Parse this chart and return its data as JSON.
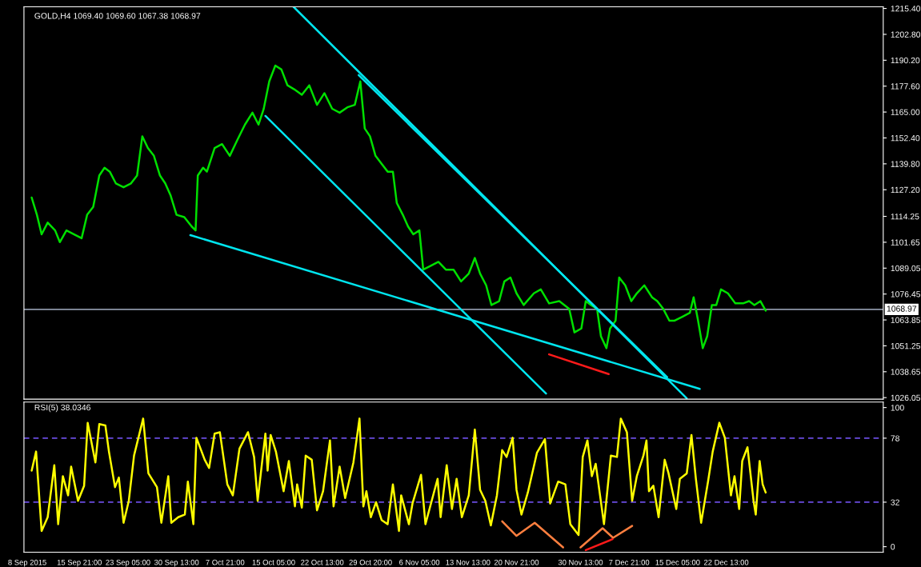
{
  "chart_data": [
    {
      "type": "line",
      "title": "GOLD,H4 1069.40 1069.60 1067.38 1068.97",
      "tick_labels": "y",
      "xlim": [
        "2015-09-07T12:00",
        "2016-01-15T06:00"
      ],
      "ylim": [
        1025.3,
        1216.2
      ],
      "yticks": [
        {
          "value": 1215.4,
          "label": "1215.40"
        },
        {
          "value": 1202.8,
          "label": "1202.80"
        },
        {
          "value": 1190.2,
          "label": "1190.20"
        },
        {
          "value": 1177.6,
          "label": "1177.60"
        },
        {
          "value": 1165.0,
          "label": "1165.00"
        },
        {
          "value": 1152.4,
          "label": "1152.40"
        },
        {
          "value": 1139.8,
          "label": "1139.80"
        },
        {
          "value": 1127.2,
          "label": "1127.20"
        },
        {
          "value": 1114.25,
          "label": "1114.25"
        },
        {
          "value": 1101.65,
          "label": "1101.65"
        },
        {
          "value": 1089.05,
          "label": "1089.05"
        },
        {
          "value": 1076.45,
          "label": "1076.45"
        },
        {
          "value": 1063.85,
          "label": "1063.85"
        },
        {
          "value": 1051.25,
          "label": "1051.25"
        },
        {
          "value": 1038.65,
          "label": "1038.65"
        },
        {
          "value": 1026.05,
          "label": "1026.05"
        }
      ],
      "ref_lines": [
        {
          "axis": "y",
          "value": 1068.97,
          "label": "1068.97",
          "color": "#8c96a8",
          "line_style": "solid"
        }
      ],
      "series": [
        {
          "color": "#00e000",
          "x": [
            "2015-09-08T16:00",
            "2015-09-09T11:00",
            "2015-09-10T04:00",
            "2015-09-11T02:00",
            "2015-09-12T05:00",
            "2015-09-12T22:00",
            "2015-09-13T22:00",
            "2015-09-15T02:00",
            "2015-09-16T05:00",
            "2015-09-17T01:00",
            "2015-09-17T23:00",
            "2015-09-18T21:00",
            "2015-09-19T16:00",
            "2015-09-20T11:00",
            "2015-09-21T09:00",
            "2015-09-22T13:00",
            "2015-09-23T16:00",
            "2015-09-24T14:00",
            "2015-09-25T09:00",
            "2015-09-26T05:00",
            "2015-09-27T03:00",
            "2015-09-28T01:00",
            "2015-09-28T20:00",
            "2015-09-29T15:00",
            "2015-09-30T13:00",
            "2015-10-01T17:00",
            "2015-10-02T20:00",
            "2015-10-03T10:00",
            "2015-10-03T18:00",
            "2015-10-04T13:00",
            "2015-10-05T03:00",
            "2015-10-06T07:00",
            "2015-10-07T10:00",
            "2015-10-08T14:00",
            "2015-10-09T17:00",
            "2015-10-10T21:00",
            "2015-10-12T00:00",
            "2015-10-12T22:00",
            "2015-10-13T17:00",
            "2015-10-14T13:00",
            "2015-10-15T11:00",
            "2015-10-16T09:00",
            "2015-10-17T07:00",
            "2015-10-18T07:00",
            "2015-10-19T11:00",
            "2015-10-20T14:00",
            "2015-10-21T18:00",
            "2015-10-22T21:00",
            "2015-10-24T01:00",
            "2015-10-25T04:00",
            "2015-10-26T08:00",
            "2015-10-27T11:00",
            "2015-10-28T07:00",
            "2015-10-28T23:00",
            "2015-10-29T18:00",
            "2015-10-30T14:00",
            "2015-10-31T12:00",
            "2015-11-01T10:00",
            "2015-11-02T05:00",
            "2015-11-02T19:00",
            "2015-11-03T17:00",
            "2015-11-04T12:00",
            "2015-11-05T07:00",
            "2015-11-06T05:00",
            "2015-11-06T19:00",
            "2015-11-07T22:00",
            "2015-11-09T02:00",
            "2015-11-10T05:00",
            "2015-11-11T09:00",
            "2015-11-12T12:00",
            "2015-11-13T16:00",
            "2015-11-14T14:00",
            "2015-11-15T09:00",
            "2015-11-16T07:00",
            "2015-11-17T02:00",
            "2015-11-18T06:00",
            "2015-11-19T01:00",
            "2015-11-19T23:00",
            "2015-11-20T21:00",
            "2015-11-21T23:00",
            "2015-11-23T12:00",
            "2015-11-24T13:00",
            "2015-11-25T19:00",
            "2015-11-27T08:00",
            "2015-11-28T20:00",
            "2015-11-29T15:00",
            "2015-11-30T16:00",
            "2015-12-01T08:00",
            "2015-12-02T03:00",
            "2015-12-03T01:00",
            "2015-12-03T15:00",
            "2015-12-04T11:00",
            "2015-12-05T00:00",
            "2015-12-05T20:00",
            "2015-12-06T09:00",
            "2015-12-07T07:00",
            "2015-12-08T05:00",
            "2015-12-09T01:00",
            "2015-12-10T04:00",
            "2015-12-11T08:00",
            "2015-12-12T03:00",
            "2015-12-13T01:00",
            "2015-12-13T23:00",
            "2015-12-14T18:00",
            "2015-12-15T22:00",
            "2015-12-17T01:00",
            "2015-12-17T15:00",
            "2015-12-18T07:00",
            "2015-12-19T00:00",
            "2015-12-19T16:00",
            "2015-12-20T09:00",
            "2015-12-21T01:00",
            "2015-12-21T18:00",
            "2015-12-22T19:00",
            "2015-12-23T22:00",
            "2015-12-25T02:00",
            "2015-12-26T00:00",
            "2015-12-26T19:00",
            "2015-12-27T17:00",
            "2015-12-28T12:00"
          ],
          "values": [
            1123.4,
            1115.0,
            1105.5,
            1111.2,
            1107.4,
            1101.7,
            1107.4,
            1105.5,
            1103.6,
            1115.0,
            1118.8,
            1134.1,
            1137.9,
            1136.0,
            1130.3,
            1128.4,
            1130.3,
            1134.1,
            1153.2,
            1147.5,
            1143.7,
            1134.1,
            1130.3,
            1124.6,
            1115.0,
            1113.9,
            1109.3,
            1107.4,
            1134.1,
            1137.9,
            1136.0,
            1147.5,
            1149.4,
            1143.7,
            1151.3,
            1158.9,
            1164.7,
            1158.9,
            1166.6,
            1179.9,
            1187.6,
            1185.7,
            1178.0,
            1176.1,
            1173.4,
            1178.0,
            1168.5,
            1174.2,
            1166.6,
            1164.7,
            1167.3,
            1168.5,
            1179.9,
            1157.0,
            1153.2,
            1143.7,
            1139.8,
            1136.0,
            1136.0,
            1120.8,
            1115.0,
            1109.3,
            1105.5,
            1107.4,
            1088.3,
            1090.2,
            1092.1,
            1088.3,
            1088.3,
            1082.6,
            1086.4,
            1094.0,
            1086.4,
            1080.7,
            1071.1,
            1073.0,
            1082.6,
            1084.5,
            1076.8,
            1071.1,
            1076.8,
            1078.7,
            1071.9,
            1073.0,
            1069.2,
            1057.8,
            1059.7,
            1073.0,
            1071.1,
            1069.2,
            1055.9,
            1050.1,
            1059.7,
            1063.5,
            1084.5,
            1080.7,
            1073.0,
            1076.8,
            1080.7,
            1074.9,
            1073.0,
            1069.2,
            1063.5,
            1063.5,
            1065.4,
            1067.3,
            1074.9,
            1063.5,
            1050.1,
            1055.9,
            1071.1,
            1071.1,
            1078.7,
            1076.8,
            1071.9,
            1071.9,
            1073.0,
            1071.1,
            1073.0,
            1068.4
          ]
        },
        {
          "color": "#00e5ee",
          "x": [
            "2015-10-02T15:00",
            "2015-12-18T13:00"
          ],
          "values": [
            1105.1,
            1030.3
          ]
        },
        {
          "color": "#00e5ee",
          "x": [
            "2015-10-28T01:00",
            "2015-12-13T15:00"
          ],
          "values": [
            1183.0,
            1036.0
          ]
        },
        {
          "color": "#00e5ee",
          "x": [
            "2015-10-18T05:00",
            "2015-12-16T14:00"
          ],
          "values": [
            1216.2,
            1025.7
          ]
        },
        {
          "color": "#00e5ee",
          "x": [
            "2015-10-13T23:00",
            "2015-11-25T08:00"
          ],
          "values": [
            1163.1,
            1028.0
          ]
        },
        {
          "color": "#ff1a1a",
          "x": [
            "2015-11-25T19:00",
            "2015-12-04T19:00"
          ],
          "values": [
            1047.1,
            1037.5
          ]
        }
      ]
    },
    {
      "type": "line",
      "title": "RSI(5) 38.0346",
      "xlim": [
        "2015-09-07T12:00",
        "2016-01-15T06:00"
      ],
      "ylim": [
        -4,
        104
      ],
      "yticks": [
        0,
        32,
        78,
        100
      ],
      "xticks": [
        {
          "value": "2015-09-08",
          "label": "8 Sep 2015"
        },
        {
          "value": "2015-09-15T21:00",
          "label": "15 Sep 21:00"
        },
        {
          "value": "2015-09-23T05:00",
          "label": "23 Sep 05:00"
        },
        {
          "value": "2015-09-30T13:00",
          "label": "30 Sep 13:00"
        },
        {
          "value": "2015-10-07T21:00",
          "label": "7 Oct 21:00"
        },
        {
          "value": "2015-10-15T05:00",
          "label": "15 Oct 05:00"
        },
        {
          "value": "2015-10-22T13:00",
          "label": "22 Oct 13:00"
        },
        {
          "value": "2015-10-29T20:00",
          "label": "29 Oct 20:00"
        },
        {
          "value": "2015-11-06T05:00",
          "label": "6 Nov 05:00"
        },
        {
          "value": "2015-11-13T13:00",
          "label": "13 Nov 13:00"
        },
        {
          "value": "2015-11-20T21:00",
          "label": "20 Nov 21:00"
        },
        {
          "value": "2015-11-30T13:00",
          "label": "30 Nov 13:00"
        },
        {
          "value": "2015-12-07T21:00",
          "label": "7 Dec 21:00"
        },
        {
          "value": "2015-12-15T05:00",
          "label": "15 Dec 05:00"
        },
        {
          "value": "2015-12-22T13:00",
          "label": "22 Dec 13:00"
        }
      ],
      "ref_lines": [
        {
          "axis": "y",
          "value": 78,
          "color": "#6a4ce0",
          "line_style": "dashed"
        },
        {
          "axis": "y",
          "value": 32,
          "color": "#6a4ce0",
          "line_style": "dashed"
        }
      ],
      "series": [
        {
          "color": "#ffff00",
          "x": [
            "2015-09-08T16:00",
            "2015-09-09T08:00",
            "2015-09-10T04:00",
            "2015-09-11T02:00",
            "2015-09-12T02:00",
            "2015-09-12T16:00",
            "2015-09-13T09:00",
            "2015-09-14T04:00",
            "2015-09-14T15:00",
            "2015-09-15T16:00",
            "2015-09-16T14:00",
            "2015-09-17T03:00",
            "2015-09-18T07:00",
            "2015-09-18T21:00",
            "2015-09-19T19:00",
            "2015-09-20T08:00",
            "2015-09-21T06:00",
            "2015-09-21T20:00",
            "2015-09-22T13:00",
            "2015-09-23T08:00",
            "2015-09-24T03:00",
            "2015-09-25T12:00",
            "2015-09-26T07:00",
            "2015-09-27T14:00",
            "2015-09-28T06:00",
            "2015-09-29T07:00",
            "2015-09-29T18:00",
            "2015-09-30T19:00",
            "2015-10-01T19:00",
            "2015-10-02T06:00",
            "2015-10-03T02:00",
            "2015-10-03T13:00",
            "2015-10-04T19:00",
            "2015-10-05T11:00",
            "2015-10-06T07:00",
            "2015-10-07T02:00",
            "2015-10-08T05:00",
            "2015-10-09T01:00",
            "2015-10-10T01:00",
            "2015-10-11T08:00",
            "2015-10-12T06:00",
            "2015-10-12T19:00",
            "2015-10-13T23:00",
            "2015-10-14T07:00",
            "2015-10-14T18:00",
            "2015-10-15T13:00",
            "2015-10-16T17:00",
            "2015-10-17T12:00",
            "2015-10-18T10:00",
            "2015-10-18T18:00",
            "2015-10-19T11:00",
            "2015-10-20T01:00",
            "2015-10-20T23:00",
            "2015-10-21T18:00",
            "2015-10-22T16:00",
            "2015-10-23T17:00",
            "2015-10-24T06:00",
            "2015-10-25T04:00",
            "2015-10-26T00:00",
            "2015-10-27T06:00",
            "2015-10-28T04:00",
            "2015-10-28T18:00",
            "2015-10-29T05:00",
            "2015-10-29T21:00",
            "2015-10-30T16:00",
            "2015-10-31T12:00",
            "2015-11-01T10:00",
            "2015-11-02T05:00",
            "2015-11-03T03:00",
            "2015-11-03T11:00",
            "2015-11-04T15:00",
            "2015-11-05T04:00",
            "2015-11-06T11:00",
            "2015-11-07T03:00",
            "2015-11-08T23:00",
            "2015-11-09T10:00",
            "2015-11-10T08:00",
            "2015-11-11T03:00",
            "2015-11-11T20:00",
            "2015-11-12T15:00",
            "2015-11-13T16:00",
            "2015-11-14T14:00",
            "2015-11-15T09:00",
            "2015-11-16T04:00",
            "2015-11-17T00:00",
            "2015-11-17T22:00",
            "2015-11-18T17:00",
            "2015-11-19T09:00",
            "2015-11-20T07:00",
            "2015-11-20T21:00",
            "2015-11-21T15:00",
            "2015-11-22T14:00",
            "2015-11-23T23:00",
            "2015-11-25T04:00",
            "2015-11-25T23:00",
            "2015-11-27T04:00",
            "2015-11-28T06:00",
            "2015-11-29T00:00",
            "2015-11-30T06:00",
            "2015-11-30T21:00",
            "2015-12-01T14:00",
            "2015-12-02T06:00",
            "2015-12-02T20:00",
            "2015-12-04T02:00",
            "2015-12-05T03:00",
            "2015-12-06T01:00",
            "2015-12-06T15:00",
            "2015-12-07T13:00",
            "2015-12-08T08:00",
            "2015-12-09T01:00",
            "2015-12-10T01:00",
            "2015-12-10T12:00",
            "2015-12-10T21:00",
            "2015-12-11T13:00",
            "2015-12-12T08:00",
            "2015-12-13T06:00",
            "2015-12-13T20:00",
            "2015-12-15T00:00",
            "2015-12-15T13:00",
            "2015-12-16T14:00",
            "2015-12-17T07:00",
            "2015-12-17T23:00",
            "2015-12-18T18:00",
            "2015-12-19T19:00",
            "2015-12-20T12:00",
            "2015-12-21T12:00",
            "2015-12-22T08:00",
            "2015-12-23T06:00",
            "2015-12-23T19:00",
            "2015-12-24T12:00",
            "2015-12-24T23:00",
            "2015-12-25T18:00",
            "2015-12-26T16:00",
            "2015-12-27T00:00",
            "2015-12-27T14:00",
            "2015-12-28T01:00",
            "2015-12-28T12:00"
          ],
          "values": [
            54.7,
            68.4,
            11.3,
            21.2,
            58.6,
            16.2,
            50.7,
            36.9,
            57.6,
            33,
            43.8,
            89,
            60.6,
            88.1,
            87.2,
            68.4,
            42.8,
            49.7,
            17.2,
            33,
            65.5,
            92.1,
            52.7,
            42.8,
            17.2,
            50.7,
            17.2,
            21.2,
            23.1,
            46.8,
            16.2,
            78.3,
            62.5,
            56.6,
            81.3,
            82.3,
            44.8,
            36.9,
            70.4,
            82.3,
            64.5,
            33,
            81.3,
            54.7,
            80.3,
            68.4,
            39.9,
            61.6,
            29,
            44.8,
            28.1,
            65.5,
            62.5,
            26.1,
            39.9,
            76.4,
            29,
            57.6,
            35,
            60.6,
            92.1,
            29,
            39.9,
            21.2,
            32,
            19.2,
            16.2,
            44.8,
            11.3,
            36.9,
            16.2,
            31,
            51.7,
            16.2,
            48.8,
            21.2,
            58.6,
            27.1,
            48.8,
            21.2,
            36.9,
            84.2,
            40.9,
            33,
            15.3,
            36.9,
            69.4,
            64.5,
            78.3,
            40.9,
            23.1,
            38.9,
            67.5,
            77.3,
            31,
            46.8,
            44.8,
            16.2,
            8.4,
            64.5,
            76.4,
            50.7,
            59.6,
            16.2,
            65.5,
            64.5,
            92.1,
            82.3,
            33,
            50.7,
            65.5,
            76.4,
            39.9,
            43.8,
            21.2,
            62.5,
            52.7,
            27.1,
            48.8,
            52.7,
            80.3,
            48.8,
            17.2,
            46.8,
            68.4,
            89.1,
            78.3,
            36.9,
            50.7,
            27.1,
            61.6,
            71.5,
            33,
            23.1,
            61.6,
            44.8,
            38.9
          ]
        },
        {
          "color": "#ff7f3f",
          "x": [
            "2015-11-18T17:00",
            "2015-11-20T21:00",
            "2015-11-23T15:00",
            "2015-11-27T22:00"
          ],
          "values": [
            18.2,
            7.8,
            17.2,
            -0.5
          ]
        },
        {
          "color": "#ff7f3f",
          "x": [
            "2015-11-30T13:00",
            "2015-12-03T21:00",
            "2015-12-05T11:00",
            "2015-12-08T08:00"
          ],
          "values": [
            -0.5,
            13.3,
            6.4,
            14.9
          ]
        },
        {
          "color": "#ff1a1a",
          "x": [
            "2015-12-01T08:00",
            "2015-12-05T09:00"
          ],
          "values": [
            -2.5,
            5.4
          ]
        }
      ]
    }
  ]
}
